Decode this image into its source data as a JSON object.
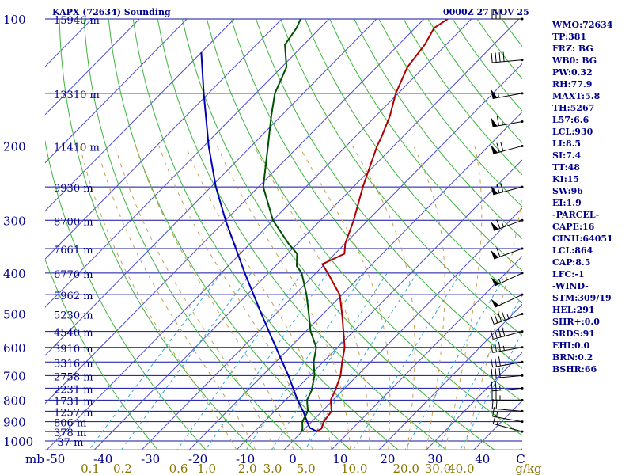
{
  "header": {
    "station": "KAPX (72634) Sounding",
    "datetime": "0000Z 27 NOV 25"
  },
  "indices": [
    "WMO:72634",
    "TP:381",
    "FRZ: BG",
    "WB0: BG",
    "PW:0.32",
    "RH:77.9",
    "MAXT:5.8",
    "TH:5267",
    "L57:6.6",
    "LCL:930",
    "LI:8.5",
    "SI:7.4",
    "TT:48",
    "KI:15",
    "SW:96",
    "EI:1.9",
    "-PARCEL-",
    "CAPE:16",
    "CINH:64051",
    "LCL:864",
    "CAP:8.5",
    "LFC:-1",
    "-WIND-",
    "STM:309/19",
    "HEL:291",
    "SHR+:0.0",
    "SRDS:91",
    "EHI:0.0",
    "BRN:0.2",
    "BSHR:66"
  ],
  "colors": {
    "isobar": "#1010a0",
    "isotherm": "#4a4ad6",
    "dry_adiabat": "#3cb43c",
    "moist_adiabat": "#c8a050",
    "mixing_ratio": "#30a8d8",
    "temperature": "#b00000",
    "dewpoint": "#005000",
    "parcel": "#0000b4",
    "wind_barb": "#000000",
    "axis_text": "#00008b",
    "mixing_text": "#8b7500"
  },
  "chart_data": {
    "type": "skew-t log-p",
    "pressure_axis": {
      "label": "mb",
      "ticks": [
        100,
        200,
        300,
        400,
        500,
        600,
        700,
        800,
        900,
        1000
      ],
      "range": [
        1050,
        100
      ],
      "scale": "log"
    },
    "temperature_axis": {
      "unit": "C",
      "ticks": [
        -50,
        -40,
        -30,
        -20,
        -10,
        0,
        10,
        20,
        30,
        40
      ],
      "range": [
        -50,
        50
      ]
    },
    "mixing_ratio_axis": {
      "unit": "g/kg",
      "ticks": [
        0.1,
        0.2,
        0.6,
        1.0,
        2.0,
        3.0,
        5.0,
        10.0,
        20.0,
        30.0,
        40.0
      ],
      "tick_labels": [
        "0.1",
        "0.2",
        "0.6",
        "1.0",
        "2.0",
        "3.0",
        "5.0",
        "10.0",
        "20.0",
        "30.0",
        "40.0"
      ]
    },
    "height_labels": [
      {
        "p": 100,
        "label": "15940 m"
      },
      {
        "p": 150,
        "label": "13310 m"
      },
      {
        "p": 200,
        "label": "11410 m"
      },
      {
        "p": 250,
        "label": "9930 m"
      },
      {
        "p": 300,
        "label": "8700 m"
      },
      {
        "p": 350,
        "label": "7661 m"
      },
      {
        "p": 400,
        "label": "6770 m"
      },
      {
        "p": 450,
        "label": "5962 m"
      },
      {
        "p": 500,
        "label": "5230 m"
      },
      {
        "p": 550,
        "label": "4540 m"
      },
      {
        "p": 600,
        "label": "3910 m"
      },
      {
        "p": 650,
        "label": "3316 m"
      },
      {
        "p": 700,
        "label": "2758 m"
      },
      {
        "p": 750,
        "label": "2231 m"
      },
      {
        "p": 800,
        "label": "1731 m"
      },
      {
        "p": 850,
        "label": "1257 m"
      },
      {
        "p": 900,
        "label": "806 m"
      },
      {
        "p": 950,
        "label": "378 m"
      },
      {
        "p": 1000,
        "label": "-37 m"
      }
    ],
    "temperature_profile": [
      [
        951,
        3.0
      ],
      [
        935,
        3.5
      ],
      [
        900,
        2.5
      ],
      [
        850,
        2.0
      ],
      [
        800,
        -0.5
      ],
      [
        760,
        -1.5
      ],
      [
        700,
        -3.5
      ],
      [
        650,
        -6.0
      ],
      [
        600,
        -8.5
      ],
      [
        500,
        -16.0
      ],
      [
        450,
        -20.5
      ],
      [
        400,
        -27.5
      ],
      [
        381,
        -30.5
      ],
      [
        360,
        -28.0
      ],
      [
        340,
        -30.0
      ],
      [
        300,
        -33.0
      ],
      [
        250,
        -38.0
      ],
      [
        200,
        -43.5
      ],
      [
        190,
        -44.5
      ],
      [
        170,
        -47.0
      ],
      [
        150,
        -50.5
      ],
      [
        130,
        -53.5
      ],
      [
        115,
        -54.5
      ],
      [
        105,
        -56.0
      ],
      [
        100,
        -55.0
      ]
    ],
    "dewpoint_profile": [
      [
        951,
        0.0
      ],
      [
        935,
        -0.5
      ],
      [
        900,
        -2.0
      ],
      [
        850,
        -3.0
      ],
      [
        800,
        -5.5
      ],
      [
        760,
        -6.5
      ],
      [
        700,
        -9.0
      ],
      [
        650,
        -12.0
      ],
      [
        600,
        -14.5
      ],
      [
        550,
        -19.0
      ],
      [
        500,
        -23.0
      ],
      [
        450,
        -27.5
      ],
      [
        400,
        -33.0
      ],
      [
        385,
        -35.5
      ],
      [
        360,
        -38.0
      ],
      [
        340,
        -42.0
      ],
      [
        300,
        -50.0
      ],
      [
        250,
        -59.0
      ],
      [
        200,
        -66.5
      ],
      [
        170,
        -72.0
      ],
      [
        150,
        -76.0
      ],
      [
        130,
        -79.0
      ],
      [
        115,
        -84.0
      ],
      [
        105,
        -85.0
      ],
      [
        100,
        -86.0
      ]
    ],
    "parcel_profile": [
      [
        951,
        3.3
      ],
      [
        930,
        0.8
      ],
      [
        900,
        -1.0
      ],
      [
        850,
        -4.0
      ],
      [
        800,
        -7.5
      ],
      [
        700,
        -14.5
      ],
      [
        600,
        -23.0
      ],
      [
        500,
        -33.0
      ],
      [
        400,
        -45.0
      ],
      [
        300,
        -60.0
      ],
      [
        250,
        -69.0
      ],
      [
        200,
        -79.0
      ],
      [
        150,
        -91.0
      ],
      [
        120,
        -100.0
      ]
    ],
    "wind_barbs": [
      {
        "p": 100,
        "dir": 270,
        "spd": 30
      },
      {
        "p": 125,
        "dir": 265,
        "spd": 40
      },
      {
        "p": 150,
        "dir": 260,
        "spd": 55
      },
      {
        "p": 175,
        "dir": 260,
        "spd": 65
      },
      {
        "p": 200,
        "dir": 255,
        "spd": 70
      },
      {
        "p": 250,
        "dir": 255,
        "spd": 70
      },
      {
        "p": 300,
        "dir": 250,
        "spd": 65
      },
      {
        "p": 350,
        "dir": 250,
        "spd": 60
      },
      {
        "p": 400,
        "dir": 245,
        "spd": 55
      },
      {
        "p": 450,
        "dir": 245,
        "spd": 50
      },
      {
        "p": 500,
        "dir": 250,
        "spd": 45
      },
      {
        "p": 550,
        "dir": 255,
        "spd": 40
      },
      {
        "p": 600,
        "dir": 260,
        "spd": 35
      },
      {
        "p": 650,
        "dir": 260,
        "spd": 30
      },
      {
        "p": 700,
        "dir": 265,
        "spd": 30
      },
      {
        "p": 750,
        "dir": 265,
        "spd": 25
      },
      {
        "p": 800,
        "dir": 270,
        "spd": 25
      },
      {
        "p": 850,
        "dir": 275,
        "spd": 20
      },
      {
        "p": 900,
        "dir": 280,
        "spd": 15
      },
      {
        "p": 950,
        "dir": 285,
        "spd": 15
      }
    ]
  }
}
